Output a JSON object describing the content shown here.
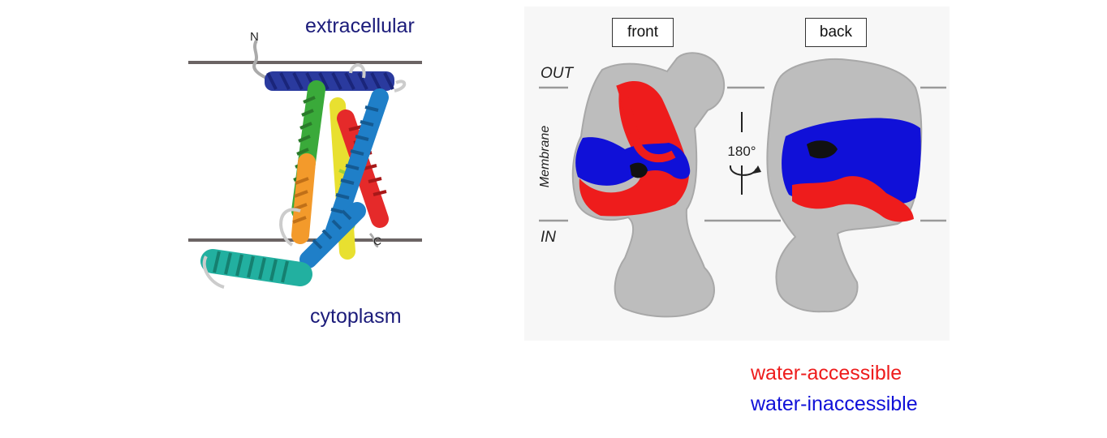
{
  "left_panel": {
    "top_label": "extracellular",
    "bottom_label": "cytoplasm",
    "n_terminus": "N",
    "c_terminus": "C",
    "membrane_color": "#6b6464"
  },
  "right_panel": {
    "view_front": "front",
    "view_back": "back",
    "out_label": "OUT",
    "in_label": "IN",
    "membrane_label": "Membrane",
    "rotation_label": "180°"
  },
  "legend": {
    "accessible": {
      "label": "water-accessible",
      "color": "#ee1c1c"
    },
    "inaccessible": {
      "label": "water-inaccessible",
      "color": "#1010d8"
    }
  },
  "colors": {
    "surface_gray": "#bdbdbd",
    "helix_colors": [
      "#2a3a9e",
      "#1f7fc8",
      "#22b0a0",
      "#f39a2b",
      "#9fcf3a",
      "#e8e030",
      "#e52a2a"
    ]
  }
}
